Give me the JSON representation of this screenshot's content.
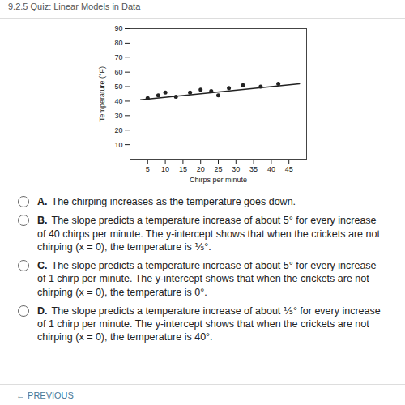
{
  "header": {
    "title": "9.2.5 Quiz: Linear Models in Data"
  },
  "chart_data": {
    "type": "scatter",
    "x_label": "Chirps per minute",
    "y_label": "Temperature (°F)",
    "x": [
      5,
      8,
      10,
      13,
      17,
      20,
      23,
      25,
      28,
      32,
      37,
      42
    ],
    "values": [
      42,
      44,
      46,
      43,
      46,
      48,
      47,
      44,
      49,
      51,
      50,
      52
    ],
    "color": "#222222",
    "marker": "circle",
    "trend_line": {
      "x": [
        3,
        48
      ],
      "y": [
        41,
        52
      ]
    },
    "xlim": [
      0,
      50
    ],
    "xticks": [
      5,
      10,
      15,
      20,
      25,
      30,
      35,
      40,
      45
    ],
    "ylim": [
      0,
      90
    ],
    "yticks": [
      10,
      20,
      30,
      40,
      50,
      60,
      70,
      80,
      90
    ],
    "grid": false
  },
  "options": [
    {
      "letter": "A.",
      "text": "The chirping increases as the temperature goes down."
    },
    {
      "letter": "B.",
      "text": "The slope predicts a temperature increase of about 5° for every increase of 40 chirps per minute. The y-intercept shows that when the crickets are not chirping (x = 0), the temperature is ⅕°."
    },
    {
      "letter": "C.",
      "text": "The slope predicts a temperature increase of about 5° for every increase of 1 chirp per minute. The y-intercept shows that when the crickets are not chirping (x = 0), the temperature is 0°."
    },
    {
      "letter": "D.",
      "text": "The slope predicts a temperature increase of about ⅕° for every increase of 1 chirp per minute. The y-intercept shows that when the crickets are not chirping (x = 0), the temperature is 40°."
    }
  ],
  "footer": "← PREVIOUS"
}
